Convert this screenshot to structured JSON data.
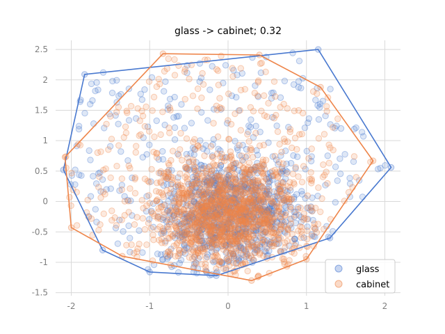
{
  "chart_data": {
    "type": "scatter",
    "title": "glass -> cabinet; 0.32",
    "xlabel": "",
    "ylabel": "",
    "xlim": [
      -2.2,
      2.2
    ],
    "ylim": [
      -1.55,
      2.65
    ],
    "xticks": [
      -2,
      -1,
      0,
      1,
      2
    ],
    "yticks": [
      -1.5,
      -1.0,
      -0.5,
      0.0,
      0.5,
      1.0,
      1.5,
      2.0,
      2.5
    ],
    "grid": true,
    "legend_position": "lower-right",
    "series": [
      {
        "name": "glass",
        "color": "#4878cf",
        "hull": [
          [
            -2.1,
            0.52
          ],
          [
            -1.83,
            2.09
          ],
          [
            1.15,
            2.5
          ],
          [
            2.08,
            0.56
          ],
          [
            1.3,
            -0.6
          ],
          [
            -0.15,
            -1.22
          ],
          [
            -1.0,
            -1.16
          ],
          [
            -1.6,
            -0.8
          ],
          [
            -2.1,
            0.52
          ]
        ]
      },
      {
        "name": "cabinet",
        "color": "#ee854a",
        "hull": [
          [
            -2.08,
            0.73
          ],
          [
            -0.83,
            2.43
          ],
          [
            0.4,
            2.41
          ],
          [
            1.18,
            1.88
          ],
          [
            1.85,
            0.67
          ],
          [
            1.0,
            -0.95
          ],
          [
            0.3,
            -1.3
          ],
          [
            -1.35,
            -0.9
          ],
          [
            -2.0,
            -0.43
          ],
          [
            -2.08,
            0.73
          ]
        ]
      }
    ]
  }
}
